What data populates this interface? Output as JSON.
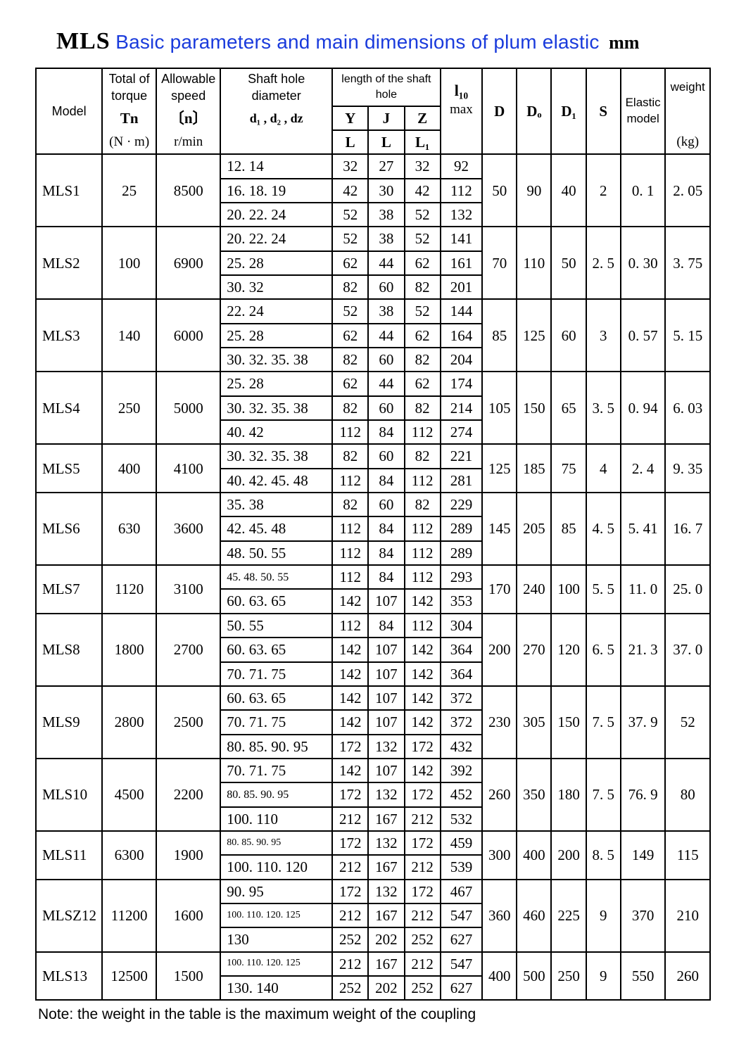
{
  "title": {
    "logo": "MLS",
    "blue": "Basic parameters and main dimensions of plum elastic",
    "unit": "mm"
  },
  "header": {
    "model": "Model",
    "torque_top": "Total of torque",
    "torque_sym": "Tn",
    "torque_unit": "(N · m)",
    "speed_top": "Allowable speed",
    "speed_sym": "〔n〕",
    "speed_unit": "r/min",
    "shaft_top": "Shaft hole diameter",
    "shaft_sym": "d₁ , d₂ , dz",
    "length_top": "length of the shaft hole",
    "Y": "Y",
    "J": "J",
    "Z": "Z",
    "L": "L",
    "L1": "L₁",
    "lto": "l₁₀",
    "max": "max",
    "D": "D",
    "Do": "Dₒ",
    "Di": "D₁",
    "S": "S",
    "elastic": "Elastic model",
    "weight": "weight",
    "weight_unit": "(kg)"
  },
  "groups": [
    {
      "model": "MLS1",
      "torque": "25",
      "speed": "8500",
      "rows": [
        {
          "d": "12. 14",
          "y": "32",
          "j": "27",
          "z": "32",
          "lto": "92"
        },
        {
          "d": "16. 18. 19",
          "y": "42",
          "j": "30",
          "z": "42",
          "lto": "112"
        },
        {
          "d": "20. 22. 24",
          "y": "52",
          "j": "38",
          "z": "52",
          "lto": "132"
        }
      ],
      "D": "50",
      "Do": "90",
      "Di": "40",
      "S": "2",
      "elastic": "0. 1",
      "weight": "2. 05"
    },
    {
      "model": "MLS2",
      "torque": "100",
      "speed": "6900",
      "rows": [
        {
          "d": "20. 22. 24",
          "y": "52",
          "j": "38",
          "z": "52",
          "lto": "141"
        },
        {
          "d": "25. 28",
          "y": "62",
          "j": "44",
          "z": "62",
          "lto": "161"
        },
        {
          "d": "30. 32",
          "y": "82",
          "j": "60",
          "z": "82",
          "lto": "201"
        }
      ],
      "D": "70",
      "Do": "110",
      "Di": "50",
      "S": "2. 5",
      "elastic": "0. 30",
      "weight": "3. 75"
    },
    {
      "model": "MLS3",
      "torque": "140",
      "speed": "6000",
      "rows": [
        {
          "d": "22. 24",
          "y": "52",
          "j": "38",
          "z": "52",
          "lto": "144"
        },
        {
          "d": "25. 28",
          "y": "62",
          "j": "44",
          "z": "62",
          "lto": "164"
        },
        {
          "d": "30. 32. 35. 38",
          "y": "82",
          "j": "60",
          "z": "82",
          "lto": "204"
        }
      ],
      "D": "85",
      "Do": "125",
      "Di": "60",
      "S": "3",
      "elastic": "0. 57",
      "weight": "5. 15"
    },
    {
      "model": "MLS4",
      "torque": "250",
      "speed": "5000",
      "rows": [
        {
          "d": "25. 28",
          "y": "62",
          "j": "44",
          "z": "62",
          "lto": "174"
        },
        {
          "d": "30. 32. 35. 38",
          "y": "82",
          "j": "60",
          "z": "82",
          "lto": "214"
        },
        {
          "d": "40. 42",
          "y": "112",
          "j": "84",
          "z": "112",
          "lto": "274"
        }
      ],
      "D": "105",
      "Do": "150",
      "Di": "65",
      "S": "3. 5",
      "elastic": "0. 94",
      "weight": "6. 03"
    },
    {
      "model": "MLS5",
      "torque": "400",
      "speed": "4100",
      "rows": [
        {
          "d": "30. 32. 35. 38",
          "y": "82",
          "j": "60",
          "z": "82",
          "lto": "221"
        },
        {
          "d": "40. 42. 45. 48",
          "y": "112",
          "j": "84",
          "z": "112",
          "lto": "281"
        }
      ],
      "D": "125",
      "Do": "185",
      "Di": "75",
      "S": "4",
      "elastic": "2. 4",
      "weight": "9. 35"
    },
    {
      "model": "MLS6",
      "torque": "630",
      "speed": "3600",
      "rows": [
        {
          "d": "35. 38",
          "y": "82",
          "j": "60",
          "z": "82",
          "lto": "229"
        },
        {
          "d": "42. 45. 48",
          "y": "112",
          "j": "84",
          "z": "112",
          "lto": "289"
        },
        {
          "d": "48. 50. 55",
          "y": "112",
          "j": "84",
          "z": "112",
          "lto": "289"
        }
      ],
      "D": "145",
      "Do": "205",
      "Di": "85",
      "S": "4. 5",
      "elastic": "5. 41",
      "weight": "16. 7"
    },
    {
      "model": "MLS7",
      "torque": "1120",
      "speed": "3100",
      "rows": [
        {
          "d": "45. 48. 50. 55",
          "dcls": "smallfont",
          "y": "112",
          "j": "84",
          "z": "112",
          "lto": "293"
        },
        {
          "d": "60. 63. 65",
          "y": "142",
          "j": "107",
          "z": "142",
          "lto": "353"
        }
      ],
      "D": "170",
      "Do": "240",
      "Di": "100",
      "S": "5. 5",
      "elastic": "11. 0",
      "weight": "25. 0"
    },
    {
      "model": "MLS8",
      "torque": "1800",
      "speed": "2700",
      "rows": [
        {
          "d": "50. 55",
          "y": "112",
          "j": "84",
          "z": "112",
          "lto": "304"
        },
        {
          "d": "60. 63. 65",
          "y": "142",
          "j": "107",
          "z": "142",
          "lto": "364"
        },
        {
          "d": "70. 71. 75",
          "y": "142",
          "j": "107",
          "z": "142",
          "lto": "364"
        }
      ],
      "D": "200",
      "Do": "270",
      "Di": "120",
      "S": "6. 5",
      "elastic": "21. 3",
      "weight": "37. 0"
    },
    {
      "model": "MLS9",
      "torque": "2800",
      "speed": "2500",
      "rows": [
        {
          "d": "60. 63. 65",
          "y": "142",
          "j": "107",
          "z": "142",
          "lto": "372"
        },
        {
          "d": "70. 71. 75",
          "y": "142",
          "j": "107",
          "z": "142",
          "lto": "372"
        },
        {
          "d": "80. 85. 90. 95",
          "y": "172",
          "j": "132",
          "z": "172",
          "lto": "432"
        }
      ],
      "D": "230",
      "Do": "305",
      "Di": "150",
      "S": "7. 5",
      "elastic": "37. 9",
      "weight": "52"
    },
    {
      "model": "MLS10",
      "torque": "4500",
      "speed": "2200",
      "rows": [
        {
          "d": "70. 71. 75",
          "y": "142",
          "j": "107",
          "z": "142",
          "lto": "392"
        },
        {
          "d": "80. 85. 90. 95",
          "dcls": "smallfont",
          "y": "172",
          "j": "132",
          "z": "172",
          "lto": "452"
        },
        {
          "d": "100. 110",
          "y": "212",
          "j": "167",
          "z": "212",
          "lto": "532"
        }
      ],
      "D": "260",
      "Do": "350",
      "Di": "180",
      "S": "7. 5",
      "elastic": "76. 9",
      "weight": "80"
    },
    {
      "model": "MLS11",
      "torque": "6300",
      "speed": "1900",
      "rows": [
        {
          "d": "80. 85. 90. 95",
          "dcls": "tinyfont",
          "y": "172",
          "j": "132",
          "z": "172",
          "lto": "459"
        },
        {
          "d": "100. 110. 120",
          "y": "212",
          "j": "167",
          "z": "212",
          "lto": "539"
        }
      ],
      "D": "300",
      "Do": "400",
      "Di": "200",
      "S": "8. 5",
      "elastic": "149",
      "weight": "115"
    },
    {
      "model": "MLSZ12",
      "torque": "11200",
      "speed": "1600",
      "rows": [
        {
          "d": "90. 95",
          "y": "172",
          "j": "132",
          "z": "172",
          "lto": "467"
        },
        {
          "d": "100. 110. 120. 125",
          "dcls": "tinyfont",
          "y": "212",
          "j": "167",
          "z": "212",
          "lto": "547"
        },
        {
          "d": "130",
          "y": "252",
          "j": "202",
          "z": "252",
          "lto": "627"
        }
      ],
      "D": "360",
      "Do": "460",
      "Di": "225",
      "S": "9",
      "elastic": "370",
      "weight": "210"
    },
    {
      "model": "MLS13",
      "torque": "12500",
      "speed": "1500",
      "rows": [
        {
          "d": "100. 110. 120. 125",
          "dcls": "tinyfont",
          "y": "212",
          "j": "167",
          "z": "212",
          "lto": "547"
        },
        {
          "d": "130. 140",
          "y": "252",
          "j": "202",
          "z": "252",
          "lto": "627"
        }
      ],
      "D": "400",
      "Do": "500",
      "Di": "250",
      "S": "9",
      "elastic": "550",
      "weight": "260"
    }
  ],
  "footnote": "Note: the weight in the table is the maximum weight of the coupling"
}
